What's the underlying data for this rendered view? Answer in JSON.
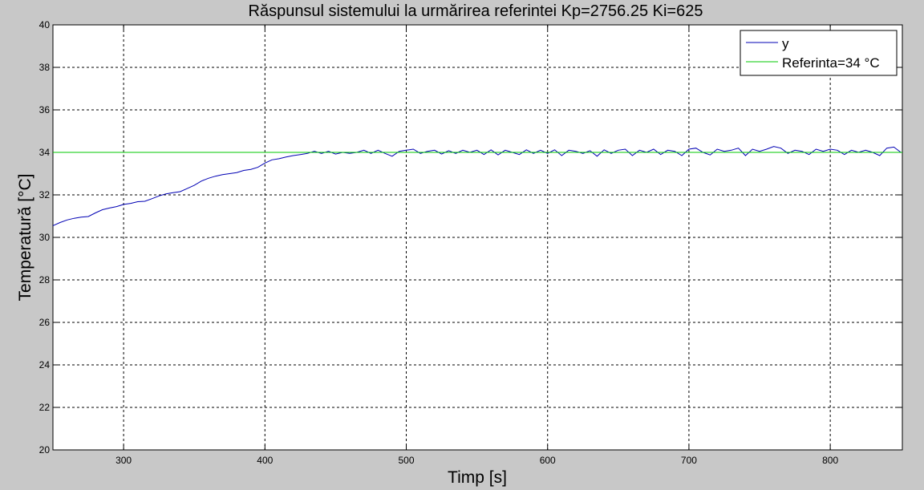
{
  "chart_data": {
    "type": "line",
    "title": "Răspunsul sistemului la urmărirea referintei Kp=2756.25 Ki=625",
    "xlabel": "Timp [s]",
    "ylabel": "Temperatură [°C]",
    "xlim": [
      250,
      851
    ],
    "ylim": [
      20,
      40
    ],
    "xticks": [
      300,
      400,
      500,
      600,
      700,
      800
    ],
    "yticks": [
      20,
      22,
      24,
      26,
      28,
      30,
      32,
      34,
      36,
      38,
      40
    ],
    "grid": true,
    "legend_position": "top-right",
    "series": [
      {
        "name": "y",
        "color": "#0000b4",
        "x": [
          250,
          255,
          260,
          265,
          270,
          275,
          280,
          285,
          290,
          295,
          300,
          305,
          310,
          315,
          320,
          325,
          330,
          335,
          340,
          345,
          350,
          355,
          360,
          365,
          370,
          375,
          380,
          385,
          390,
          395,
          400,
          405,
          410,
          415,
          420,
          425,
          430,
          435,
          440,
          445,
          450,
          455,
          460,
          465,
          470,
          475,
          480,
          485,
          490,
          495,
          500,
          505,
          510,
          515,
          520,
          525,
          530,
          535,
          540,
          545,
          550,
          555,
          560,
          565,
          570,
          575,
          580,
          585,
          590,
          595,
          600,
          605,
          610,
          615,
          620,
          625,
          630,
          635,
          640,
          645,
          650,
          655,
          660,
          665,
          670,
          675,
          680,
          685,
          690,
          695,
          700,
          705,
          710,
          715,
          720,
          725,
          730,
          735,
          740,
          745,
          750,
          755,
          760,
          765,
          770,
          775,
          780,
          785,
          790,
          795,
          800,
          805,
          810,
          815,
          820,
          825,
          830,
          835,
          840,
          845,
          850
        ],
        "y": [
          30.55,
          30.7,
          30.82,
          30.9,
          30.95,
          30.98,
          31.15,
          31.3,
          31.38,
          31.45,
          31.55,
          31.6,
          31.68,
          31.7,
          31.82,
          31.95,
          32.05,
          32.1,
          32.15,
          32.3,
          32.45,
          32.65,
          32.78,
          32.88,
          32.95,
          33.0,
          33.05,
          33.15,
          33.2,
          33.3,
          33.5,
          33.65,
          33.7,
          33.78,
          33.85,
          33.9,
          33.95,
          34.05,
          33.95,
          34.05,
          33.92,
          34.0,
          33.95,
          34.0,
          34.1,
          33.95,
          34.1,
          33.95,
          33.82,
          34.05,
          34.1,
          34.15,
          33.95,
          34.05,
          34.1,
          33.92,
          34.08,
          33.95,
          34.1,
          34.0,
          34.1,
          33.9,
          34.12,
          33.88,
          34.1,
          34.0,
          33.9,
          34.12,
          33.95,
          34.1,
          33.95,
          34.12,
          33.85,
          34.1,
          34.05,
          33.95,
          34.08,
          33.82,
          34.12,
          33.95,
          34.1,
          34.15,
          33.85,
          34.1,
          34.0,
          34.15,
          33.9,
          34.1,
          34.05,
          33.85,
          34.15,
          34.2,
          34.0,
          33.88,
          34.15,
          34.05,
          34.1,
          34.2,
          33.85,
          34.15,
          34.05,
          34.15,
          34.28,
          34.2,
          33.95,
          34.1,
          34.05,
          33.9,
          34.15,
          34.05,
          34.15,
          34.1,
          33.9,
          34.1,
          34.0,
          34.1,
          34.0,
          33.85,
          34.2,
          34.25,
          34.0
        ]
      },
      {
        "name": "Referinta=34 °C",
        "color": "#00c800",
        "x": [
          250,
          851
        ],
        "y": [
          34,
          34
        ]
      }
    ]
  }
}
